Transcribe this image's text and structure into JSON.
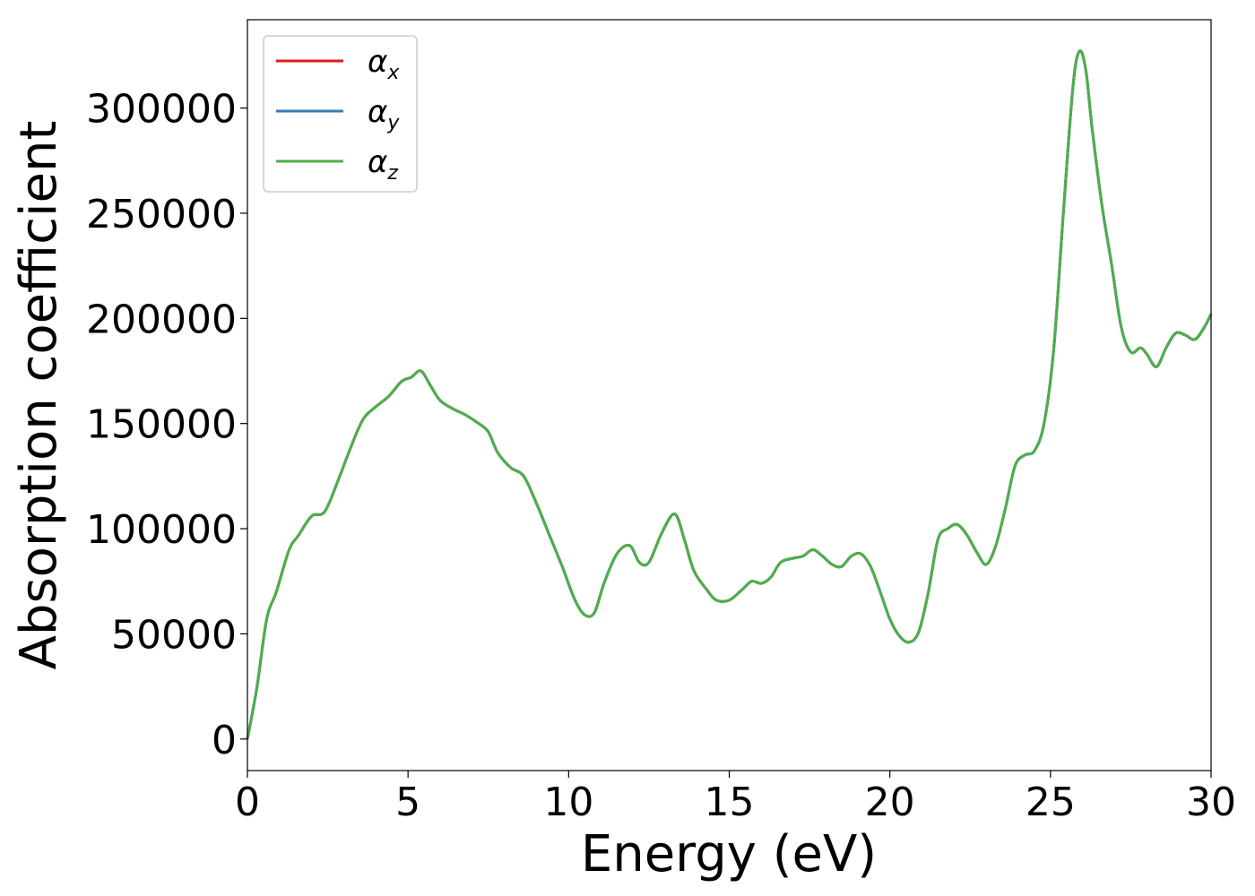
{
  "chart_data": {
    "type": "line",
    "title": "",
    "xlabel": "Energy (eV)",
    "ylabel": "Absorption coefficient",
    "xlim": [
      0,
      30
    ],
    "ylim": [
      -15000,
      342000
    ],
    "xticks": [
      0,
      5,
      10,
      15,
      20,
      25,
      30
    ],
    "xtick_labels": [
      "0",
      "5",
      "10",
      "15",
      "20",
      "25",
      "30"
    ],
    "yticks": [
      0,
      50000,
      100000,
      150000,
      200000,
      250000,
      300000
    ],
    "ytick_labels": [
      "0",
      "50000",
      "100000",
      "150000",
      "200000",
      "250000",
      "300000"
    ],
    "grid": false,
    "legend_position": "top-left",
    "x": [
      0,
      0.3,
      0.6,
      0.9,
      1.3,
      1.6,
      2.0,
      2.4,
      2.8,
      3.2,
      3.6,
      4.0,
      4.4,
      4.8,
      5.1,
      5.4,
      5.7,
      6.0,
      6.4,
      6.8,
      7.2,
      7.5,
      7.8,
      8.2,
      8.6,
      9.0,
      9.4,
      9.8,
      10.2,
      10.5,
      10.8,
      11.1,
      11.5,
      11.9,
      12.2,
      12.5,
      12.9,
      13.3,
      13.6,
      13.9,
      14.3,
      14.6,
      15.0,
      15.4,
      15.7,
      16.0,
      16.3,
      16.6,
      17.0,
      17.3,
      17.6,
      17.9,
      18.2,
      18.5,
      18.8,
      19.1,
      19.4,
      19.7,
      20.0,
      20.3,
      20.6,
      20.9,
      21.2,
      21.5,
      21.8,
      22.1,
      22.4,
      22.7,
      23.0,
      23.3,
      23.6,
      23.9,
      24.2,
      24.5,
      24.8,
      25.1,
      25.4,
      25.7,
      25.9,
      26.1,
      26.3,
      26.6,
      26.9,
      27.2,
      27.5,
      27.8,
      28.0,
      28.3,
      28.6,
      28.9,
      29.2,
      29.5,
      29.8,
      30.0
    ],
    "series": [
      {
        "name": "αx",
        "color": "#e41a1c",
        "values": [
          0,
          25000,
          57000,
          70000,
          90000,
          97000,
          106000,
          108000,
          122000,
          138000,
          152000,
          158000,
          163000,
          170000,
          172000,
          175000,
          168000,
          161000,
          157000,
          154000,
          150000,
          146000,
          136000,
          129000,
          125000,
          112000,
          97000,
          82000,
          66000,
          59000,
          60000,
          74000,
          88000,
          92000,
          84000,
          84000,
          98000,
          107000,
          95000,
          80000,
          71000,
          66000,
          66000,
          71000,
          75000,
          74000,
          77000,
          84000,
          86000,
          87000,
          90000,
          87000,
          83000,
          82000,
          87000,
          88000,
          82000,
          70000,
          57000,
          49000,
          46000,
          51000,
          70000,
          95000,
          100000,
          102000,
          97000,
          89000,
          83000,
          92000,
          110000,
          130000,
          135000,
          137000,
          150000,
          185000,
          250000,
          310000,
          327000,
          318000,
          290000,
          254000,
          226000,
          196000,
          184000,
          186000,
          183000,
          177000,
          186000,
          193000,
          192000,
          190000,
          196000,
          202000
        ]
      },
      {
        "name": "αy",
        "color": "#377eb8",
        "values": [
          0,
          25000,
          57000,
          70000,
          90000,
          97000,
          106000,
          108000,
          122000,
          138000,
          152000,
          158000,
          163000,
          170000,
          172000,
          175000,
          168000,
          161000,
          157000,
          154000,
          150000,
          146000,
          136000,
          129000,
          125000,
          112000,
          97000,
          82000,
          66000,
          59000,
          60000,
          74000,
          88000,
          92000,
          84000,
          84000,
          98000,
          107000,
          95000,
          80000,
          71000,
          66000,
          66000,
          71000,
          75000,
          74000,
          77000,
          84000,
          86000,
          87000,
          90000,
          87000,
          83000,
          82000,
          87000,
          88000,
          82000,
          70000,
          57000,
          49000,
          46000,
          51000,
          70000,
          95000,
          100000,
          102000,
          97000,
          89000,
          83000,
          92000,
          110000,
          130000,
          135000,
          137000,
          150000,
          185000,
          250000,
          310000,
          327000,
          318000,
          290000,
          254000,
          226000,
          196000,
          184000,
          186000,
          183000,
          177000,
          186000,
          193000,
          192000,
          190000,
          196000,
          202000
        ]
      },
      {
        "name": "αz",
        "color": "#4daf4a",
        "values": [
          0,
          25000,
          57000,
          70000,
          90000,
          97000,
          106000,
          108000,
          122000,
          138000,
          152000,
          158000,
          163000,
          170000,
          172000,
          175000,
          168000,
          161000,
          157000,
          154000,
          150000,
          146000,
          136000,
          129000,
          125000,
          112000,
          97000,
          82000,
          66000,
          59000,
          60000,
          74000,
          88000,
          92000,
          84000,
          84000,
          98000,
          107000,
          95000,
          80000,
          71000,
          66000,
          66000,
          71000,
          75000,
          74000,
          77000,
          84000,
          86000,
          87000,
          90000,
          87000,
          83000,
          82000,
          87000,
          88000,
          82000,
          70000,
          57000,
          49000,
          46000,
          51000,
          70000,
          95000,
          100000,
          102000,
          97000,
          89000,
          83000,
          92000,
          110000,
          130000,
          135000,
          137000,
          150000,
          185000,
          250000,
          310000,
          327000,
          318000,
          290000,
          254000,
          226000,
          196000,
          184000,
          186000,
          183000,
          177000,
          186000,
          193000,
          192000,
          190000,
          196000,
          202000
        ]
      }
    ],
    "legend": [
      {
        "symbol": "α",
        "sub": "x"
      },
      {
        "symbol": "α",
        "sub": "y"
      },
      {
        "symbol": "α",
        "sub": "z"
      }
    ]
  }
}
